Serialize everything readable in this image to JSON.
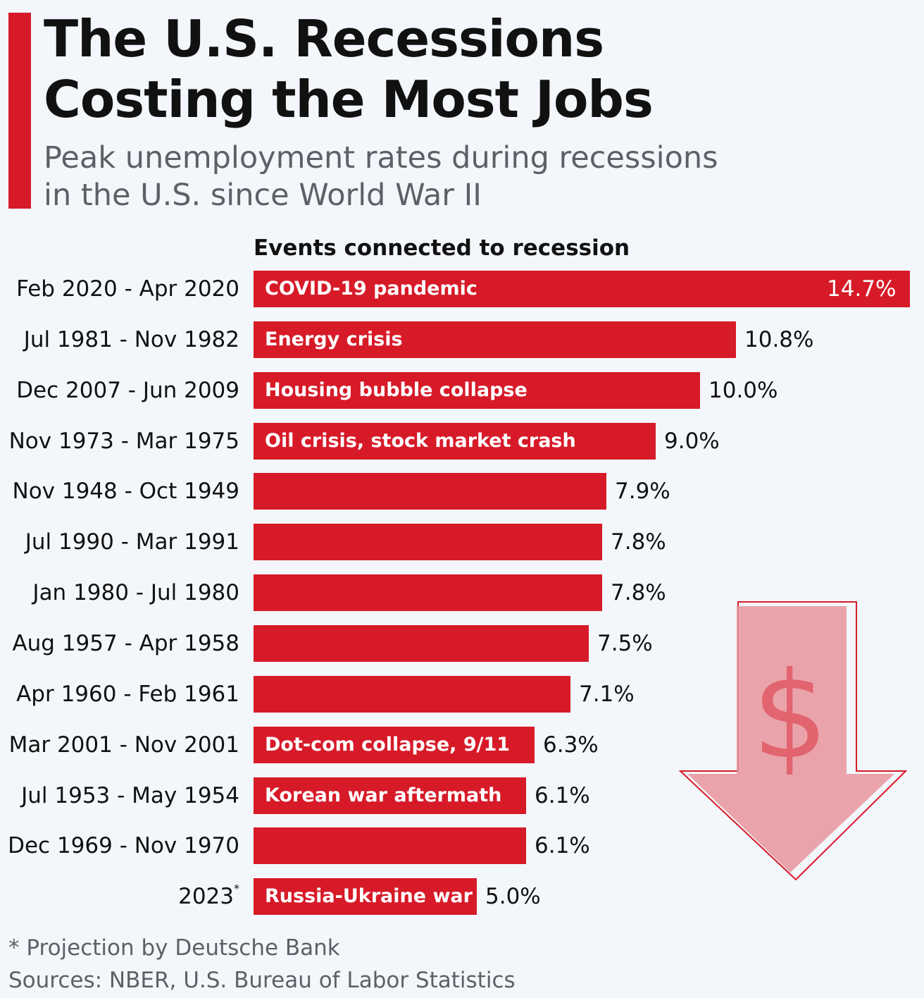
{
  "header": {
    "title": "The U.S. Recessions Costing the Most Jobs",
    "subtitle": "Peak unemployment rates during recessions in the U.S. since World War II"
  },
  "colors": {
    "accent": "#d71a28",
    "background": "#f3f7fb",
    "arrow": "#e8949b"
  },
  "icons": [
    "dollar-down-arrow-icon"
  ],
  "chart_data": {
    "type": "bar",
    "orientation": "horizontal",
    "title": "The U.S. Recessions Costing the Most Jobs",
    "column_header": "Events connected to recession",
    "unit": "%",
    "xlim": [
      0,
      14.7
    ],
    "categories": [
      "Feb 2020 - Apr 2020",
      "Jul 1981 - Nov 1982",
      "Dec 2007 - Jun 2009",
      "Nov 1973 - Mar 1975",
      "Nov 1948 - Oct 1949",
      "Jul 1990 - Mar 1991",
      "Jan 1980 - Jul 1980",
      "Aug 1957 - Apr 1958",
      "Apr 1960 - Feb 1961",
      "Mar 2001 - Nov 2001",
      "Jul 1953 - May 1954",
      "Dec 1969 - Nov 1970",
      "2023"
    ],
    "category_marks": [
      "",
      "",
      "",
      "",
      "",
      "",
      "",
      "",
      "",
      "",
      "",
      "",
      "*"
    ],
    "values": [
      14.7,
      10.8,
      10.0,
      9.0,
      7.9,
      7.8,
      7.8,
      7.5,
      7.1,
      6.3,
      6.1,
      6.1,
      5.0
    ],
    "value_labels": [
      "14.7%",
      "10.8%",
      "10.0%",
      "9.0%",
      "7.9%",
      "7.8%",
      "7.8%",
      "7.5%",
      "7.1%",
      "6.3%",
      "6.1%",
      "6.1%",
      "5.0%"
    ],
    "events": [
      "COVID-19 pandemic",
      "Energy crisis",
      "Housing bubble collapse",
      "Oil crisis, stock market crash",
      "",
      "",
      "",
      "",
      "",
      "Dot-com collapse, 9/11",
      "Korean war aftermath",
      "",
      "Russia-Ukraine war"
    ]
  },
  "footer": {
    "note": "* Projection by Deutsche Bank",
    "sources": "Sources: NBER, U.S. Bureau of Labor Statistics"
  }
}
